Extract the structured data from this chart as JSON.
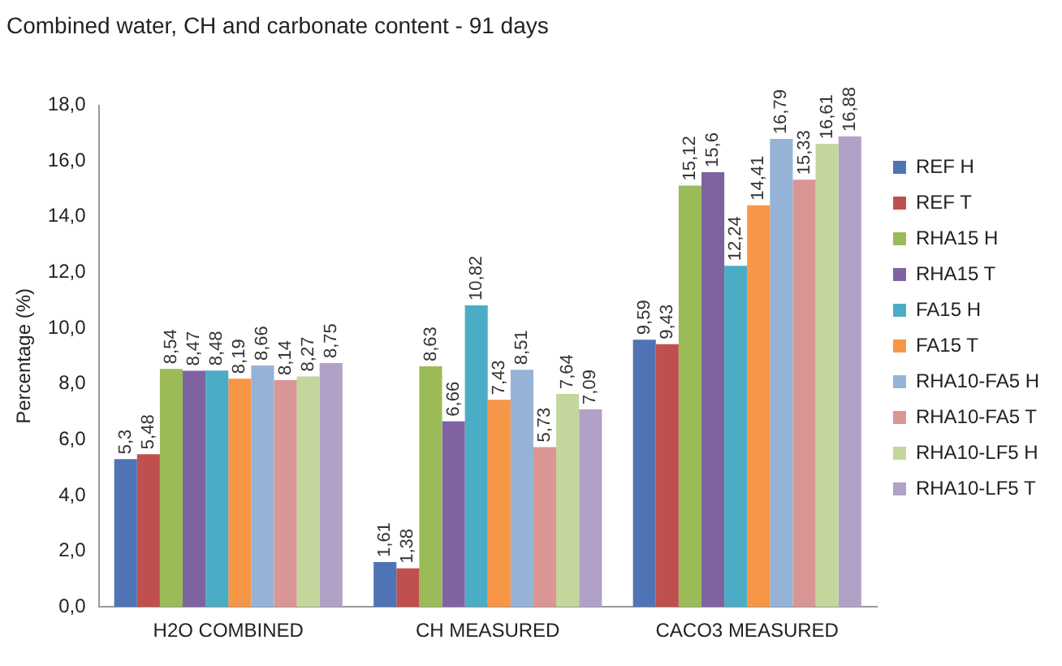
{
  "chart_data": {
    "type": "bar",
    "title": "Combined water, CH and carbonate content - 91 days",
    "ylabel": "Percentage (%)",
    "categories": [
      "H2O COMBINED",
      "CH MEASURED",
      "CACO3 MEASURED"
    ],
    "ylim": [
      0,
      18
    ],
    "yticks": [
      {
        "value": 0,
        "label": "0,0"
      },
      {
        "value": 2,
        "label": "2,0"
      },
      {
        "value": 4,
        "label": "4,0"
      },
      {
        "value": 6,
        "label": "6,0"
      },
      {
        "value": 8,
        "label": "8,0"
      },
      {
        "value": 10,
        "label": "10,0"
      },
      {
        "value": 12,
        "label": "12,0"
      },
      {
        "value": 14,
        "label": "14,0"
      },
      {
        "value": 16,
        "label": "16,0"
      },
      {
        "value": 18,
        "label": "18,0"
      }
    ],
    "grid": false,
    "legend": "right",
    "series": [
      {
        "name": "REF H",
        "color": "#4f74b5",
        "values": [
          5.3,
          1.61,
          9.59
        ],
        "value_labels": [
          "5,3",
          "1,61",
          "9,59"
        ]
      },
      {
        "name": "REF T",
        "color": "#c0504d",
        "values": [
          5.48,
          1.38,
          9.43
        ],
        "value_labels": [
          "5,48",
          "1,38",
          "9,43"
        ]
      },
      {
        "name": "RHA15 H",
        "color": "#9bbb59",
        "values": [
          8.54,
          8.63,
          15.12
        ],
        "value_labels": [
          "8,54",
          "8,63",
          "15,12"
        ]
      },
      {
        "name": "RHA15 T",
        "color": "#7f63a1",
        "values": [
          8.47,
          6.66,
          15.6
        ],
        "value_labels": [
          "8,47",
          "6,66",
          "15,6"
        ]
      },
      {
        "name": "FA15 H",
        "color": "#4bacc6",
        "values": [
          8.48,
          10.82,
          12.24
        ],
        "value_labels": [
          "8,48",
          "10,82",
          "12,24"
        ]
      },
      {
        "name": "FA15 T",
        "color": "#f79646",
        "values": [
          8.19,
          7.43,
          14.41
        ],
        "value_labels": [
          "8,19",
          "7,43",
          "14,41"
        ]
      },
      {
        "name": "RHA10-FA5 H",
        "color": "#95b3d7",
        "values": [
          8.66,
          8.51,
          16.79
        ],
        "value_labels": [
          "8,66",
          "8,51",
          "16,79"
        ]
      },
      {
        "name": "RHA10-FA5 T",
        "color": "#d99694",
        "values": [
          8.14,
          5.73,
          15.33
        ],
        "value_labels": [
          "8,14",
          "5,73",
          "15,33"
        ]
      },
      {
        "name": "RHA10-LF5 H",
        "color": "#c3d69b",
        "values": [
          8.27,
          7.64,
          16.61
        ],
        "value_labels": [
          "8,27",
          "7,64",
          "16,61"
        ]
      },
      {
        "name": "RHA10-LF5 T",
        "color": "#b2a1c7",
        "values": [
          8.75,
          7.09,
          16.88
        ],
        "value_labels": [
          "8,75",
          "7,09",
          "16,88"
        ]
      }
    ]
  }
}
